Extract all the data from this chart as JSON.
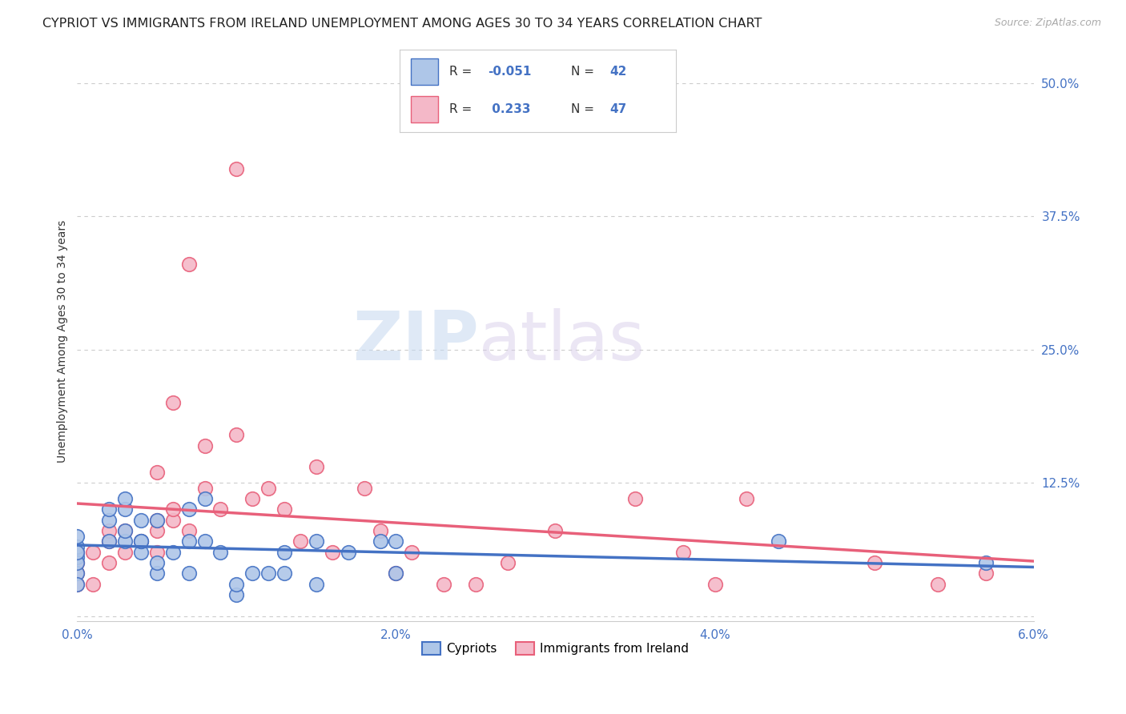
{
  "title": "CYPRIOT VS IMMIGRANTS FROM IRELAND UNEMPLOYMENT AMONG AGES 30 TO 34 YEARS CORRELATION CHART",
  "source": "Source: ZipAtlas.com",
  "ylabel": "Unemployment Among Ages 30 to 34 years",
  "xlim": [
    0.0,
    0.06
  ],
  "ylim": [
    -0.005,
    0.52
  ],
  "x_ticks": [
    0.0,
    0.01,
    0.02,
    0.03,
    0.04,
    0.05,
    0.06
  ],
  "x_tick_labels": [
    "0.0%",
    "",
    "2.0%",
    "",
    "4.0%",
    "",
    "6.0%"
  ],
  "y_ticks": [
    0.0,
    0.125,
    0.25,
    0.375,
    0.5
  ],
  "y_tick_labels": [
    "",
    "12.5%",
    "25.0%",
    "37.5%",
    "50.0%"
  ],
  "cypriot_color": "#aec6e8",
  "ireland_color": "#f4b8c8",
  "cypriot_line_color": "#4472c4",
  "ireland_line_color": "#e8607a",
  "cypriot_R": -0.051,
  "cypriot_N": 42,
  "ireland_R": 0.233,
  "ireland_N": 47,
  "watermark_zip": "ZIP",
  "watermark_atlas": "atlas",
  "cypriot_x": [
    0.0,
    0.0,
    0.0,
    0.0,
    0.0,
    0.0,
    0.0,
    0.002,
    0.002,
    0.002,
    0.003,
    0.003,
    0.003,
    0.003,
    0.004,
    0.004,
    0.004,
    0.004,
    0.005,
    0.005,
    0.005,
    0.006,
    0.007,
    0.007,
    0.007,
    0.008,
    0.008,
    0.009,
    0.01,
    0.01,
    0.011,
    0.012,
    0.013,
    0.013,
    0.015,
    0.015,
    0.017,
    0.019,
    0.02,
    0.02,
    0.044,
    0.057
  ],
  "cypriot_y": [
    0.04,
    0.055,
    0.065,
    0.05,
    0.03,
    0.06,
    0.075,
    0.09,
    0.1,
    0.07,
    0.07,
    0.08,
    0.1,
    0.11,
    0.06,
    0.07,
    0.09,
    0.07,
    0.04,
    0.05,
    0.09,
    0.06,
    0.04,
    0.07,
    0.1,
    0.07,
    0.11,
    0.06,
    0.02,
    0.03,
    0.04,
    0.04,
    0.04,
    0.06,
    0.03,
    0.07,
    0.06,
    0.07,
    0.07,
    0.04,
    0.07,
    0.05
  ],
  "ireland_x": [
    0.0,
    0.0,
    0.0,
    0.0,
    0.001,
    0.001,
    0.002,
    0.002,
    0.002,
    0.003,
    0.003,
    0.004,
    0.005,
    0.005,
    0.005,
    0.005,
    0.006,
    0.006,
    0.006,
    0.007,
    0.007,
    0.008,
    0.008,
    0.009,
    0.01,
    0.01,
    0.011,
    0.012,
    0.013,
    0.014,
    0.015,
    0.016,
    0.018,
    0.019,
    0.02,
    0.021,
    0.023,
    0.025,
    0.027,
    0.03,
    0.035,
    0.038,
    0.04,
    0.042,
    0.05,
    0.054,
    0.057
  ],
  "ireland_y": [
    0.04,
    0.05,
    0.03,
    0.06,
    0.06,
    0.03,
    0.05,
    0.07,
    0.08,
    0.06,
    0.08,
    0.07,
    0.08,
    0.135,
    0.06,
    0.09,
    0.09,
    0.1,
    0.2,
    0.08,
    0.33,
    0.12,
    0.16,
    0.1,
    0.17,
    0.42,
    0.11,
    0.12,
    0.1,
    0.07,
    0.14,
    0.06,
    0.12,
    0.08,
    0.04,
    0.06,
    0.03,
    0.03,
    0.05,
    0.08,
    0.11,
    0.06,
    0.03,
    0.11,
    0.05,
    0.03,
    0.04
  ],
  "background_color": "#ffffff",
  "grid_color": "#cccccc",
  "title_fontsize": 11.5,
  "label_fontsize": 10,
  "tick_fontsize": 11
}
